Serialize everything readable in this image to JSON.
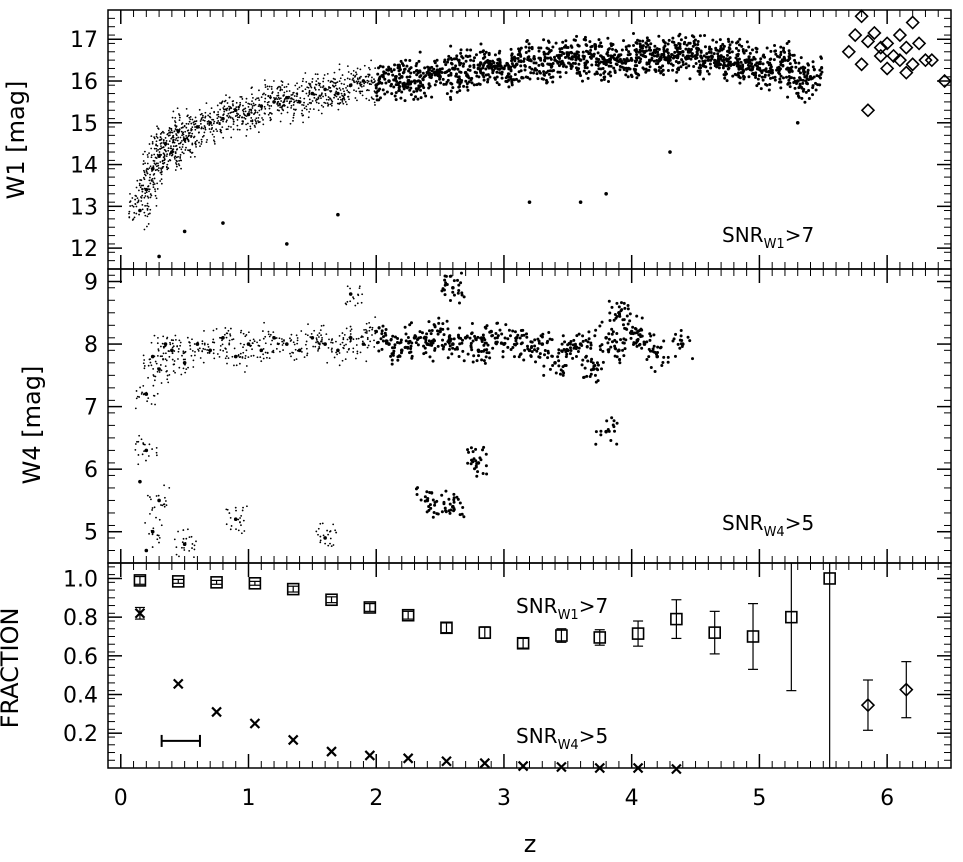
{
  "chart_data": [
    {
      "type": "scatter",
      "panel": "top",
      "ylabel": "W1  [mag]",
      "xlim": [
        -0.1,
        6.5
      ],
      "ylim": [
        11.5,
        17.7
      ],
      "yticks": [
        "12",
        "13",
        "14",
        "15",
        "16",
        "17"
      ],
      "annotation": {
        "prefix": "SNR",
        "sub": "W1",
        "suffix": ">7"
      },
      "series": [
        {
          "marker": "dot",
          "description_density": "dense cloud of sources rising from W1~13 at z~0.2 to W1~16 at z>2",
          "points": [
            [
              0.15,
              12.9
            ],
            [
              0.2,
              13.4
            ],
            [
              0.25,
              13.9
            ],
            [
              0.3,
              14.2
            ],
            [
              0.35,
              14.5
            ],
            [
              0.4,
              14.3
            ],
            [
              0.45,
              14.8
            ],
            [
              0.5,
              14.6
            ],
            [
              0.6,
              14.9
            ],
            [
              0.7,
              15.0
            ],
            [
              0.8,
              15.1
            ],
            [
              0.9,
              15.3
            ],
            [
              1.0,
              15.2
            ],
            [
              1.1,
              15.4
            ],
            [
              1.2,
              15.5
            ],
            [
              1.3,
              15.6
            ],
            [
              1.4,
              15.5
            ],
            [
              1.5,
              15.7
            ],
            [
              1.6,
              15.8
            ],
            [
              1.7,
              15.7
            ],
            [
              1.8,
              15.9
            ],
            [
              1.9,
              16.0
            ],
            [
              2.0,
              15.9
            ],
            [
              2.1,
              16.0
            ],
            [
              2.2,
              16.1
            ],
            [
              2.3,
              16.0
            ],
            [
              2.4,
              16.2
            ],
            [
              2.5,
              16.1
            ],
            [
              2.6,
              16.3
            ],
            [
              2.7,
              16.2
            ],
            [
              2.8,
              16.3
            ],
            [
              2.9,
              16.4
            ],
            [
              3.0,
              16.3
            ],
            [
              3.1,
              16.4
            ],
            [
              3.2,
              16.5
            ],
            [
              3.3,
              16.4
            ],
            [
              3.4,
              16.5
            ],
            [
              3.5,
              16.6
            ],
            [
              3.6,
              16.5
            ],
            [
              3.7,
              16.6
            ],
            [
              3.8,
              16.4
            ],
            [
              3.9,
              16.6
            ],
            [
              4.0,
              16.5
            ],
            [
              4.1,
              16.7
            ],
            [
              4.2,
              16.6
            ],
            [
              4.3,
              16.5
            ],
            [
              4.4,
              16.7
            ],
            [
              4.5,
              16.6
            ],
            [
              4.6,
              16.5
            ],
            [
              4.7,
              16.6
            ],
            [
              4.8,
              16.4
            ],
            [
              4.9,
              16.5
            ],
            [
              5.0,
              16.3
            ],
            [
              5.1,
              16.2
            ],
            [
              5.2,
              16.5
            ],
            [
              5.3,
              16.0
            ],
            [
              5.4,
              16.1
            ],
            [
              5.3,
              15.0
            ],
            [
              4.3,
              14.3
            ],
            [
              3.6,
              13.1
            ],
            [
              3.8,
              13.3
            ],
            [
              3.2,
              13.1
            ],
            [
              1.7,
              12.8
            ],
            [
              1.3,
              12.1
            ],
            [
              0.8,
              12.6
            ],
            [
              0.5,
              12.4
            ],
            [
              0.3,
              11.8
            ]
          ]
        },
        {
          "marker": "diamond",
          "points": [
            [
              5.8,
              17.55
            ],
            [
              5.75,
              17.1
            ],
            [
              5.9,
              17.15
            ],
            [
              6.0,
              16.9
            ],
            [
              6.1,
              17.1
            ],
            [
              6.2,
              17.4
            ],
            [
              5.85,
              16.95
            ],
            [
              5.95,
              16.8
            ],
            [
              6.05,
              16.6
            ],
            [
              6.15,
              16.8
            ],
            [
              6.25,
              16.9
            ],
            [
              5.8,
              16.4
            ],
            [
              5.95,
              16.6
            ],
            [
              6.1,
              16.5
            ],
            [
              6.3,
              16.5
            ],
            [
              6.35,
              16.5
            ],
            [
              6.2,
              16.4
            ],
            [
              5.7,
              16.7
            ],
            [
              6.0,
              16.3
            ],
            [
              6.15,
              16.2
            ],
            [
              5.85,
              15.3
            ],
            [
              6.45,
              16.0
            ]
          ]
        }
      ]
    },
    {
      "type": "scatter",
      "panel": "middle",
      "ylabel": "W4  [mag]",
      "xlim": [
        -0.1,
        6.5
      ],
      "ylim": [
        4.5,
        9.2
      ],
      "yticks": [
        "5",
        "6",
        "7",
        "8",
        "9"
      ],
      "annotation": {
        "prefix": "SNR",
        "sub": "W4",
        "suffix": ">5"
      },
      "series": [
        {
          "marker": "dot",
          "points": [
            [
              0.2,
              7.2
            ],
            [
              0.25,
              7.8
            ],
            [
              0.3,
              7.6
            ],
            [
              0.35,
              8.0
            ],
            [
              0.4,
              7.9
            ],
            [
              0.5,
              7.7
            ],
            [
              0.6,
              8.0
            ],
            [
              0.7,
              7.9
            ],
            [
              0.8,
              8.1
            ],
            [
              0.9,
              7.8
            ],
            [
              1.0,
              8.0
            ],
            [
              1.1,
              7.9
            ],
            [
              1.2,
              8.1
            ],
            [
              1.3,
              8.0
            ],
            [
              1.4,
              7.9
            ],
            [
              1.5,
              8.1
            ],
            [
              1.6,
              8.0
            ],
            [
              1.7,
              7.9
            ],
            [
              1.8,
              8.1
            ],
            [
              1.9,
              8.0
            ],
            [
              2.0,
              8.2
            ],
            [
              2.1,
              8.0
            ],
            [
              2.2,
              7.9
            ],
            [
              2.3,
              8.1
            ],
            [
              2.4,
              8.0
            ],
            [
              2.5,
              8.2
            ],
            [
              2.6,
              8.0
            ],
            [
              2.7,
              8.1
            ],
            [
              2.8,
              7.9
            ],
            [
              2.9,
              8.2
            ],
            [
              3.0,
              8.0
            ],
            [
              3.1,
              8.1
            ],
            [
              3.2,
              7.9
            ],
            [
              3.3,
              8.0
            ],
            [
              3.4,
              7.7
            ],
            [
              3.5,
              7.9
            ],
            [
              3.6,
              8.0
            ],
            [
              3.7,
              7.6
            ],
            [
              3.8,
              8.1
            ],
            [
              3.9,
              7.9
            ],
            [
              4.0,
              8.2
            ],
            [
              4.1,
              8.0
            ],
            [
              4.2,
              7.8
            ],
            [
              4.4,
              8.0
            ],
            [
              3.9,
              8.5
            ],
            [
              2.6,
              8.9
            ],
            [
              1.8,
              8.8
            ],
            [
              3.8,
              6.6
            ],
            [
              2.8,
              6.1
            ],
            [
              2.4,
              5.5
            ],
            [
              2.6,
              5.4
            ],
            [
              1.6,
              4.9
            ],
            [
              0.9,
              5.2
            ],
            [
              0.5,
              4.8
            ],
            [
              0.3,
              5.5
            ],
            [
              0.2,
              6.3
            ],
            [
              0.25,
              5.0
            ],
            [
              0.15,
              5.8
            ],
            [
              0.2,
              4.7
            ]
          ]
        }
      ]
    },
    {
      "type": "scatter",
      "panel": "bottom",
      "ylabel": "FRACTION",
      "xlabel": "z",
      "xlim": [
        -0.1,
        6.5
      ],
      "ylim": [
        0.02,
        1.08
      ],
      "yticks": [
        "0.2",
        "0.4",
        "0.6",
        "0.8",
        "1.0"
      ],
      "xticks": [
        "0",
        "1",
        "2",
        "3",
        "4",
        "5",
        "6"
      ],
      "annotations": [
        {
          "prefix": "SNR",
          "sub": "W1",
          "suffix": ">7"
        },
        {
          "prefix": "SNR",
          "sub": "W4",
          "suffix": ">5"
        }
      ],
      "bin_width_bar": {
        "x": [
          0.32,
          0.62
        ],
        "y": 0.16
      },
      "series": [
        {
          "marker": "square",
          "points": [
            {
              "x": 0.15,
              "y": 0.99,
              "err": 0.02
            },
            {
              "x": 0.45,
              "y": 0.985,
              "err": 0.01
            },
            {
              "x": 0.75,
              "y": 0.98,
              "err": 0.01
            },
            {
              "x": 1.05,
              "y": 0.975,
              "err": 0.01
            },
            {
              "x": 1.35,
              "y": 0.945,
              "err": 0.015
            },
            {
              "x": 1.65,
              "y": 0.89,
              "err": 0.015
            },
            {
              "x": 1.95,
              "y": 0.85,
              "err": 0.02
            },
            {
              "x": 2.25,
              "y": 0.81,
              "err": 0.02
            },
            {
              "x": 2.55,
              "y": 0.745,
              "err": 0.025
            },
            {
              "x": 2.85,
              "y": 0.72,
              "err": 0.03
            },
            {
              "x": 3.15,
              "y": 0.665,
              "err": 0.025
            },
            {
              "x": 3.45,
              "y": 0.705,
              "err": 0.035
            },
            {
              "x": 3.75,
              "y": 0.695,
              "err": 0.04
            },
            {
              "x": 4.05,
              "y": 0.715,
              "err": 0.065
            },
            {
              "x": 4.35,
              "y": 0.79,
              "err": 0.1
            },
            {
              "x": 4.65,
              "y": 0.72,
              "err": 0.11
            },
            {
              "x": 4.95,
              "y": 0.7,
              "err": 0.17
            },
            {
              "x": 5.25,
              "y": 0.8,
              "err": 0.38
            },
            {
              "x": 5.55,
              "y": 1.0,
              "err": 0.98
            }
          ]
        },
        {
          "marker": "cross",
          "points": [
            {
              "x": 0.15,
              "y": 0.82,
              "err": 0.03
            },
            {
              "x": 0.45,
              "y": 0.455,
              "err": 0
            },
            {
              "x": 0.75,
              "y": 0.31,
              "err": 0
            },
            {
              "x": 1.05,
              "y": 0.25,
              "err": 0
            },
            {
              "x": 1.35,
              "y": 0.165,
              "err": 0
            },
            {
              "x": 1.65,
              "y": 0.105,
              "err": 0
            },
            {
              "x": 1.95,
              "y": 0.085,
              "err": 0
            },
            {
              "x": 2.25,
              "y": 0.07,
              "err": 0
            },
            {
              "x": 2.55,
              "y": 0.055,
              "err": 0
            },
            {
              "x": 2.85,
              "y": 0.045,
              "err": 0
            },
            {
              "x": 3.15,
              "y": 0.03,
              "err": 0
            },
            {
              "x": 3.45,
              "y": 0.025,
              "err": 0
            },
            {
              "x": 3.75,
              "y": 0.02,
              "err": 0
            },
            {
              "x": 4.05,
              "y": 0.02,
              "err": 0
            },
            {
              "x": 4.35,
              "y": 0.015,
              "err": 0
            }
          ]
        },
        {
          "marker": "diamond",
          "points": [
            {
              "x": 5.85,
              "y": 0.345,
              "err": 0.13
            },
            {
              "x": 6.15,
              "y": 0.425,
              "err": 0.145
            }
          ]
        }
      ]
    }
  ]
}
